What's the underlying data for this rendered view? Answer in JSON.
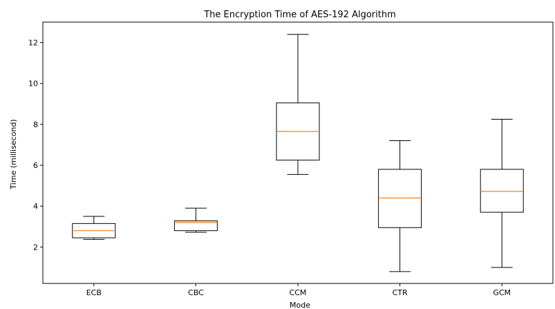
{
  "chart_data": {
    "type": "boxplot",
    "title": "The Encryption Time of AES-192 Algorithm",
    "xlabel": "Mode",
    "ylabel": "Time (millisecond)",
    "categories": [
      "ECB",
      "CBC",
      "CCM",
      "CTR",
      "GCM"
    ],
    "boxes": [
      {
        "category": "ECB",
        "whisker_low": 2.37,
        "q1": 2.45,
        "median": 2.8,
        "q3": 3.15,
        "whisker_high": 3.5
      },
      {
        "category": "CBC",
        "whisker_low": 2.72,
        "q1": 2.8,
        "median": 3.2,
        "q3": 3.28,
        "whisker_high": 3.9
      },
      {
        "category": "CCM",
        "whisker_low": 5.55,
        "q1": 6.25,
        "median": 7.65,
        "q3": 9.05,
        "whisker_high": 12.4
      },
      {
        "category": "CTR",
        "whisker_low": 0.8,
        "q1": 2.95,
        "median": 4.4,
        "q3": 5.8,
        "whisker_high": 7.2
      },
      {
        "category": "GCM",
        "whisker_low": 1.0,
        "q1": 3.7,
        "median": 4.72,
        "q3": 5.8,
        "whisker_high": 8.25
      }
    ],
    "yticks": [
      2,
      4,
      6,
      8,
      10,
      12
    ],
    "ylim": [
      0.22,
      13.0
    ],
    "grid": false,
    "colors": {
      "box": "#000000",
      "median": "#ff7f0e"
    }
  }
}
